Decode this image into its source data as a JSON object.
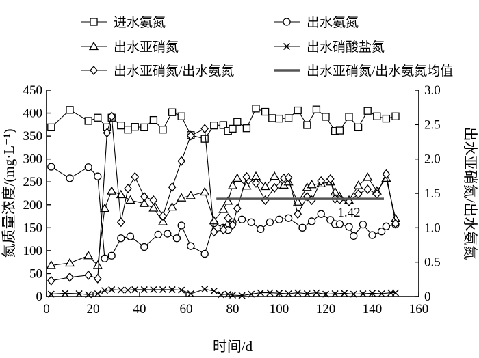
{
  "chart_data": {
    "type": "line",
    "xlabel": "时间/d",
    "ylabel_left": "氮质量浓度/(mg·L⁻¹)",
    "ylabel_right": "出水亚硝氮/出水氨氮",
    "xlim": [
      0,
      160
    ],
    "ylim_left": [
      0,
      450
    ],
    "ylim_right": [
      0,
      3.0
    ],
    "x_ticks": [
      "0",
      "20",
      "40",
      "60",
      "80",
      "100",
      "120",
      "140",
      "160"
    ],
    "y_left_ticks": [
      "0",
      "50",
      "100",
      "150",
      "200",
      "250",
      "300",
      "350",
      "400",
      "450"
    ],
    "y_right_ticks": [
      "0",
      "0.5",
      "1.0",
      "1.5",
      "2.0",
      "2.5",
      "3.0"
    ],
    "legend_position": "top",
    "grid": false,
    "series": [
      {
        "name": "进水氨氮",
        "axis": "left",
        "marker": "square",
        "x": [
          2,
          10,
          18,
          22,
          26,
          28,
          32,
          35,
          38,
          42,
          46,
          50,
          54,
          58,
          62,
          68,
          72,
          76,
          78,
          80,
          82,
          86,
          90,
          94,
          97,
          100,
          104,
          108,
          112,
          116,
          120,
          124,
          126,
          130,
          134,
          138,
          142,
          146,
          150
        ],
        "y": [
          369,
          407,
          383,
          390,
          369,
          390,
          373,
          364,
          370,
          369,
          385,
          364,
          402,
          393,
          352,
          344,
          373,
          374,
          361,
          366,
          381,
          367,
          410,
          403,
          389,
          388,
          389,
          406,
          374,
          408,
          392,
          361,
          362,
          392,
          369,
          405,
          393,
          388,
          393
        ]
      },
      {
        "name": "出水氨氮",
        "axis": "left",
        "marker": "circle",
        "x": [
          2,
          10,
          18,
          22,
          25,
          28,
          32,
          36,
          42,
          48,
          52,
          56,
          58,
          62,
          68,
          72,
          76,
          78,
          80,
          84,
          88,
          92,
          96,
          100,
          104,
          110,
          114,
          118,
          122,
          124,
          126,
          130,
          132,
          136,
          140,
          144,
          146,
          150
        ],
        "y": [
          283,
          258,
          282,
          262,
          83,
          89,
          127,
          131,
          108,
          135,
          137,
          127,
          155,
          110,
          93,
          160,
          150,
          145,
          162,
          168,
          162,
          147,
          162,
          168,
          171,
          150,
          164,
          180,
          167,
          158,
          158,
          152,
          132,
          157,
          134,
          142,
          153,
          157
        ]
      },
      {
        "name": "出水亚硝氮",
        "axis": "left",
        "marker": "triangle",
        "x": [
          2,
          10,
          18,
          22,
          25,
          28,
          32,
          36,
          42,
          46,
          50,
          54,
          58,
          62,
          68,
          72,
          76,
          78,
          80,
          82,
          86,
          90,
          94,
          98,
          102,
          104,
          108,
          112,
          114,
          118,
          122,
          124,
          126,
          130,
          134,
          138,
          142,
          146,
          150
        ],
        "y": [
          68,
          73,
          89,
          68,
          192,
          230,
          222,
          210,
          203,
          193,
          163,
          195,
          215,
          220,
          228,
          165,
          190,
          208,
          242,
          258,
          241,
          262,
          240,
          262,
          243,
          250,
          206,
          238,
          244,
          246,
          250,
          228,
          218,
          210,
          242,
          260,
          230,
          258,
          170
        ]
      },
      {
        "name": "出水硝酸盐氮",
        "axis": "left",
        "marker": "x",
        "x": [
          2,
          8,
          14,
          18,
          22,
          25,
          28,
          32,
          35,
          38,
          42,
          46,
          50,
          54,
          58,
          62,
          68,
          72,
          75,
          78,
          80,
          84,
          88,
          92,
          96,
          100,
          104,
          108,
          112,
          116,
          120,
          124,
          128,
          132,
          136,
          140,
          144,
          148,
          150
        ],
        "y": [
          5,
          7,
          6,
          4,
          6,
          13,
          15,
          14,
          14,
          15,
          15,
          15,
          15,
          15,
          14,
          6,
          16,
          12,
          4,
          5,
          3,
          2,
          5,
          8,
          8,
          7,
          6,
          8,
          6,
          8,
          5,
          6,
          7,
          5,
          6,
          7,
          6,
          8,
          8
        ]
      },
      {
        "name": "出水亚硝氮/出水氨氮",
        "axis": "right",
        "marker": "diamond",
        "x": [
          2,
          10,
          18,
          22,
          26,
          28,
          32,
          35,
          38,
          42,
          46,
          50,
          54,
          58,
          62,
          68,
          72,
          76,
          78,
          80,
          82,
          86,
          90,
          94,
          98,
          102,
          104,
          108,
          112,
          114,
          118,
          122,
          124,
          126,
          130,
          134,
          138,
          142,
          146,
          150
        ],
        "y": [
          0.23,
          0.28,
          0.31,
          0.26,
          2.38,
          2.62,
          1.08,
          1.57,
          1.74,
          1.45,
          1.4,
          1.17,
          1.59,
          1.97,
          2.34,
          2.44,
          0.94,
          0.97,
          1.14,
          1.04,
          1.28,
          1.74,
          1.65,
          1.4,
          1.58,
          1.72,
          1.73,
          1.2,
          1.45,
          1.4,
          1.68,
          1.71,
          1.42,
          1.41,
          1.38,
          1.49,
          1.56,
          1.49,
          1.78,
          1.06
        ]
      },
      {
        "name": "出水亚硝氮/出水氨氮均值",
        "axis": "right",
        "marker": "none",
        "x": [
          73,
          145
        ],
        "y": [
          1.42,
          1.42
        ]
      }
    ],
    "annotations": [
      "1.42"
    ]
  }
}
